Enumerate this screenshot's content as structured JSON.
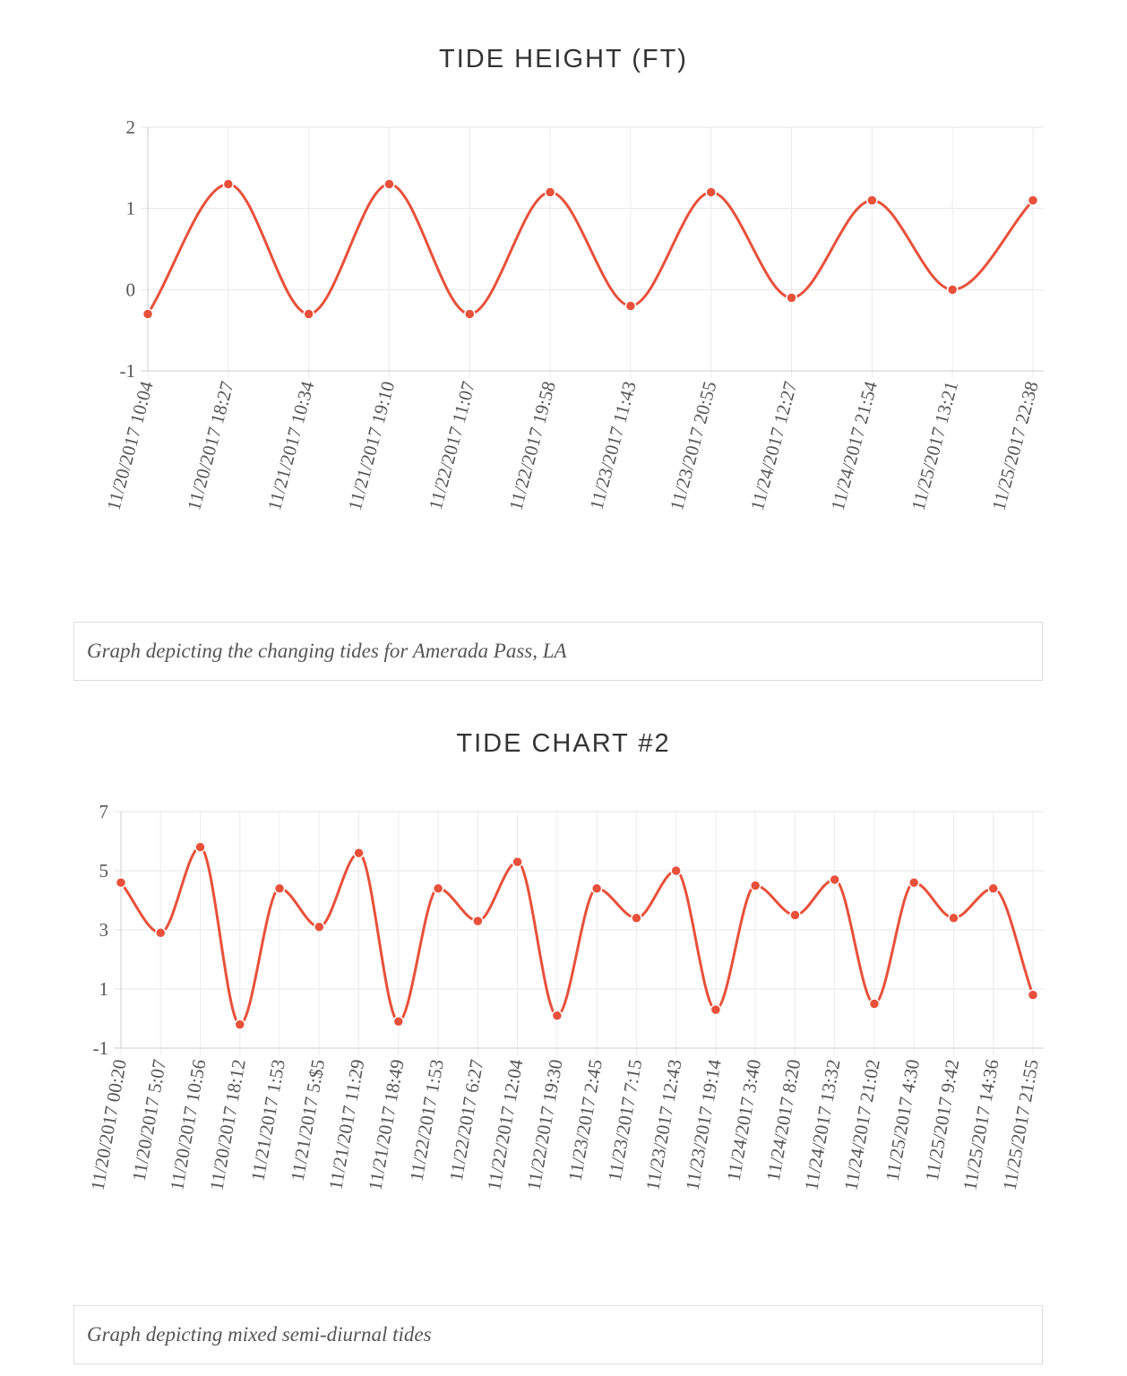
{
  "chart_data": [
    {
      "type": "line",
      "title": "TIDE HEIGHT (FT)",
      "caption": "Graph depicting the changing tides for Amerada Pass, LA",
      "categories": [
        "11/20/2017 10:04",
        "11/20/2017 18:27",
        "11/21/2017 10:34",
        "11/21/2017 19:10",
        "11/22/2017 11:07",
        "11/22/2017 19:58",
        "11/23/2017 11:43",
        "11/23/2017 20:55",
        "11/24/2017 12:27",
        "11/24/2017 21:54",
        "11/25/2017 13:21",
        "11/25/2017 22:38"
      ],
      "values": [
        -0.3,
        1.3,
        -0.3,
        1.3,
        -0.3,
        1.2,
        -0.2,
        1.2,
        -0.1,
        1.1,
        0.0,
        1.1
      ],
      "yticks": [
        "2",
        "1",
        "0",
        "-1"
      ],
      "ylim": [
        -1,
        2
      ],
      "grid": true,
      "line_color": "#e8503a"
    },
    {
      "type": "line",
      "title": "TIDE CHART #2",
      "caption": "Graph depicting mixed semi-diurnal tides",
      "categories": [
        "11/20/2017 00:20",
        "11/20/2017 5:07",
        "11/20/2017 10:56",
        "11/20/2017 18:12",
        "11/21/2017 1:53",
        "11/21/2017 5:$5",
        "11/21/2017 11:29",
        "11/21/2017 18:49",
        "11/22/2017 1:53",
        "11/22/2017 6:27",
        "11/22/2017 12:04",
        "11/22/2017 19:30",
        "11/23/2017 2:45",
        "11/23/2017 7:15",
        "11/23/2017 12:43",
        "11/23/2017 19:14",
        "11/24/2017 3:40",
        "11/24/2017 8:20",
        "11/24/2017 13:32",
        "11/24/2017 21:02",
        "11/25/2017 4:30",
        "11/25/2017 9:42",
        "11/25/2017 14:36",
        "11/25/2017 21:55"
      ],
      "values": [
        4.6,
        2.9,
        5.8,
        -0.2,
        4.4,
        3.1,
        5.6,
        -0.1,
        4.4,
        3.3,
        5.3,
        0.1,
        4.4,
        3.4,
        5.0,
        0.3,
        4.5,
        3.5,
        4.7,
        0.5,
        4.6,
        3.4,
        4.4,
        0.8
      ],
      "yticks": [
        "7",
        "5",
        "3",
        "1",
        "-1"
      ],
      "ylim": [
        -1,
        7
      ],
      "grid": true,
      "line_color": "#e8503a"
    }
  ]
}
